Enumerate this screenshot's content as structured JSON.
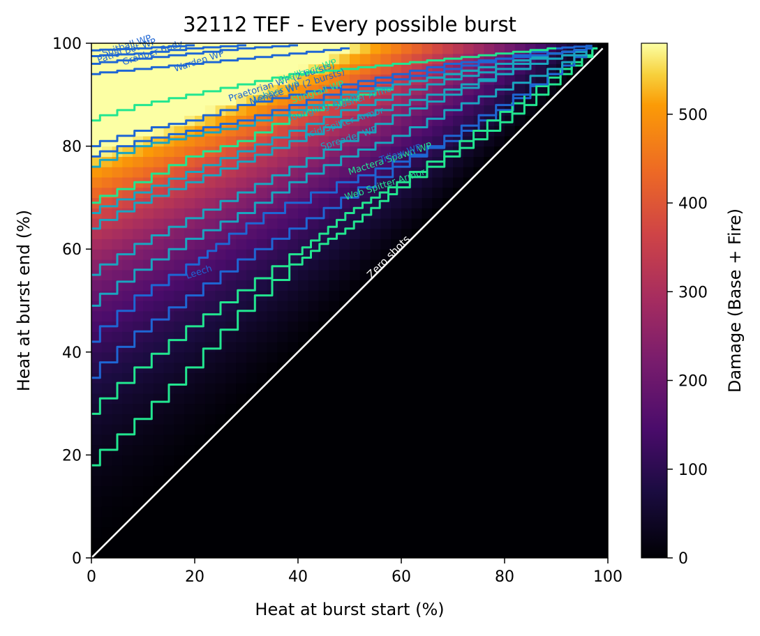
{
  "chart_data": {
    "type": "heatmap",
    "title": "32112 TEF - Every possible burst",
    "xlabel": "Heat at burst start (%)",
    "ylabel": "Heat at burst end (%)",
    "xlim": [
      0,
      100
    ],
    "ylim": [
      0,
      100
    ],
    "x_ticks": [
      "0",
      "20",
      "40",
      "60",
      "80",
      "100"
    ],
    "y_ticks": [
      "0",
      "20",
      "40",
      "60",
      "80",
      "100"
    ],
    "grid": false,
    "colormap": "inferno",
    "colorbar": {
      "label": "Damage (Base + Fire)",
      "range": [
        0,
        580
      ],
      "ticks": [
        "0",
        "100",
        "200",
        "300",
        "400",
        "500"
      ]
    },
    "diagonal": {
      "label": "Zero shots",
      "color": "#ffffff"
    },
    "contours": [
      {
        "name": "Leech",
        "color": "#1e66d4",
        "points": [
          [
            0,
            42
          ],
          [
            10,
            51
          ],
          [
            20,
            57
          ],
          [
            25,
            61
          ],
          [
            35,
            67
          ],
          [
            50,
            73
          ],
          [
            60,
            77
          ],
          [
            70,
            81
          ],
          [
            80,
            87
          ],
          [
            90,
            94
          ],
          [
            97,
            99
          ]
        ],
        "label_at": [
          21,
          55
        ]
      },
      {
        "name": "Web Spitter Armor",
        "color": "#22e690",
        "points": [
          [
            0,
            18
          ],
          [
            10,
            27
          ],
          [
            20,
            37
          ],
          [
            30,
            48
          ],
          [
            40,
            57
          ],
          [
            45,
            61
          ],
          [
            50,
            64
          ],
          [
            55,
            68
          ],
          [
            60,
            72
          ],
          [
            70,
            78
          ],
          [
            78,
            83
          ],
          [
            85,
            88
          ],
          [
            92,
            94
          ],
          [
            98,
            99
          ]
        ],
        "label_at": [
          57,
          72
        ]
      },
      {
        "name": "Mactera Spawn WP",
        "color": "#22e690",
        "points": [
          [
            0,
            28
          ],
          [
            10,
            37
          ],
          [
            20,
            45
          ],
          [
            30,
            52
          ],
          [
            40,
            59
          ],
          [
            45,
            63
          ],
          [
            50,
            67
          ],
          [
            55,
            70
          ],
          [
            60,
            73
          ],
          [
            70,
            79
          ],
          [
            78,
            85
          ],
          [
            85,
            90
          ],
          [
            92,
            95
          ],
          [
            98,
            99
          ]
        ],
        "label_at": [
          58,
          77
        ]
      },
      {
        "name": "Trijaw WP",
        "color": "#1e66d4",
        "points": [
          [
            0,
            35
          ],
          [
            10,
            44
          ],
          [
            20,
            51
          ],
          [
            30,
            58
          ],
          [
            40,
            64
          ],
          [
            50,
            70
          ],
          [
            60,
            76
          ],
          [
            70,
            82
          ],
          [
            80,
            88
          ],
          [
            90,
            94
          ],
          [
            97,
            99
          ]
        ],
        "label_at": [
          60,
          78
        ]
      },
      {
        "name": "Spreader WP",
        "color": "#1aa5c0",
        "points": [
          [
            0,
            49
          ],
          [
            10,
            56
          ],
          [
            20,
            62
          ],
          [
            30,
            67
          ],
          [
            40,
            73
          ],
          [
            50,
            78
          ],
          [
            60,
            82
          ],
          [
            70,
            87
          ],
          [
            80,
            91
          ],
          [
            90,
            95
          ],
          [
            97,
            99
          ]
        ],
        "label_at": [
          50,
          81
        ]
      },
      {
        "name": "Acid Spitter Armor",
        "color": "#1aa5c0",
        "points": [
          [
            0,
            55
          ],
          [
            10,
            61
          ],
          [
            20,
            66
          ],
          [
            30,
            71
          ],
          [
            40,
            76
          ],
          [
            50,
            81
          ],
          [
            60,
            86
          ],
          [
            70,
            90
          ],
          [
            80,
            94
          ],
          [
            90,
            97
          ],
          [
            97,
            99
          ]
        ],
        "label_at": [
          49,
          84
        ]
      },
      {
        "name": "Slasher Armor",
        "color": "#1aa5c0",
        "points": [
          [
            0,
            64
          ],
          [
            10,
            69
          ],
          [
            20,
            73
          ],
          [
            30,
            77
          ],
          [
            40,
            81
          ],
          [
            50,
            85
          ],
          [
            60,
            88
          ],
          [
            70,
            91
          ],
          [
            80,
            94
          ],
          [
            90,
            97
          ],
          [
            97,
            99
          ]
        ],
        "label_at": [
          53,
          89
        ]
      },
      {
        "name": "Youngling Armor",
        "color": "#1aa5c0",
        "points": [
          [
            0,
            67
          ],
          [
            10,
            71
          ],
          [
            20,
            75
          ],
          [
            30,
            79
          ],
          [
            40,
            83
          ],
          [
            50,
            87
          ],
          [
            60,
            90
          ],
          [
            70,
            93
          ],
          [
            80,
            95
          ],
          [
            90,
            98
          ],
          [
            97,
            99
          ]
        ],
        "label_at": [
          45,
          87
        ]
      },
      {
        "name": "Stingtail WP",
        "color": "#22e690",
        "points": [
          [
            0,
            69
          ],
          [
            10,
            73
          ],
          [
            20,
            78
          ],
          [
            30,
            81
          ],
          [
            40,
            86
          ],
          [
            50,
            89
          ],
          [
            60,
            92
          ],
          [
            70,
            94
          ],
          [
            80,
            96
          ],
          [
            90,
            98
          ],
          [
            97,
            99
          ]
        ],
        "label_at": [
          44,
          90
        ]
      },
      {
        "name": "Lobber WP",
        "color": "#1aa5c0",
        "points": [
          [
            0,
            76
          ],
          [
            10,
            80
          ],
          [
            20,
            82
          ],
          [
            30,
            84
          ],
          [
            40,
            87
          ],
          [
            50,
            90
          ],
          [
            60,
            92
          ],
          [
            70,
            94
          ],
          [
            80,
            96
          ],
          [
            90,
            98
          ],
          [
            97,
            99
          ]
        ],
        "label_at": [
          36,
          90
        ]
      },
      {
        "name": "Menace WP (2 bursts)",
        "color": "#1e66d4",
        "points": [
          [
            0,
            78
          ],
          [
            10,
            81
          ],
          [
            20,
            83
          ],
          [
            30,
            85
          ],
          [
            40,
            88
          ],
          [
            50,
            91
          ],
          [
            60,
            93
          ],
          [
            70,
            95
          ],
          [
            80,
            97
          ],
          [
            90,
            98
          ],
          [
            97,
            99
          ]
        ],
        "label_at": [
          40,
          91
        ]
      },
      {
        "name": "Praetorian WP (2 bursts)",
        "color": "#1e66d4",
        "points": [
          [
            0,
            80
          ],
          [
            10,
            83
          ],
          [
            20,
            85
          ],
          [
            30,
            88
          ],
          [
            40,
            90
          ],
          [
            50,
            92
          ],
          [
            60,
            94
          ],
          [
            70,
            96
          ],
          [
            80,
            97
          ],
          [
            90,
            99
          ],
          [
            97,
            99.5
          ]
        ],
        "label_at": [
          37,
          92
        ]
      },
      {
        "name": "Shellback WP",
        "color": "#22e690",
        "points": [
          [
            0,
            85
          ],
          [
            10,
            88
          ],
          [
            20,
            90
          ],
          [
            30,
            92
          ],
          [
            40,
            94
          ],
          [
            50,
            95
          ],
          [
            60,
            96
          ],
          [
            70,
            97
          ],
          [
            80,
            98
          ],
          [
            90,
            99
          ]
        ],
        "label_at": [
          42,
          94
        ]
      },
      {
        "name": "Warden WP",
        "color": "#1e66d4",
        "points": [
          [
            0,
            94
          ],
          [
            10,
            95
          ],
          [
            20,
            96
          ],
          [
            30,
            97
          ],
          [
            40,
            98
          ],
          [
            50,
            99
          ]
        ],
        "label_at": [
          21,
          96
        ]
      },
      {
        "name": "Grabber Body",
        "color": "#1e66d4",
        "points": [
          [
            0,
            96
          ],
          [
            10,
            97
          ],
          [
            20,
            98
          ],
          [
            30,
            99
          ],
          [
            40,
            99.6
          ]
        ],
        "label_at": [
          12,
          97.6
        ]
      },
      {
        "name": "Patrol Bot WP",
        "color": "#1e66d4",
        "points": [
          [
            0,
            97.5
          ],
          [
            10,
            98
          ],
          [
            20,
            99
          ],
          [
            30,
            99.6
          ]
        ],
        "label_at": [
          7,
          98
        ]
      },
      {
        "name": "Spitball WP",
        "color": "#1e66d4",
        "points": [
          [
            0,
            98.6
          ],
          [
            10,
            99
          ],
          [
            20,
            99.6
          ]
        ],
        "label_at": [
          7,
          99
        ]
      }
    ]
  }
}
